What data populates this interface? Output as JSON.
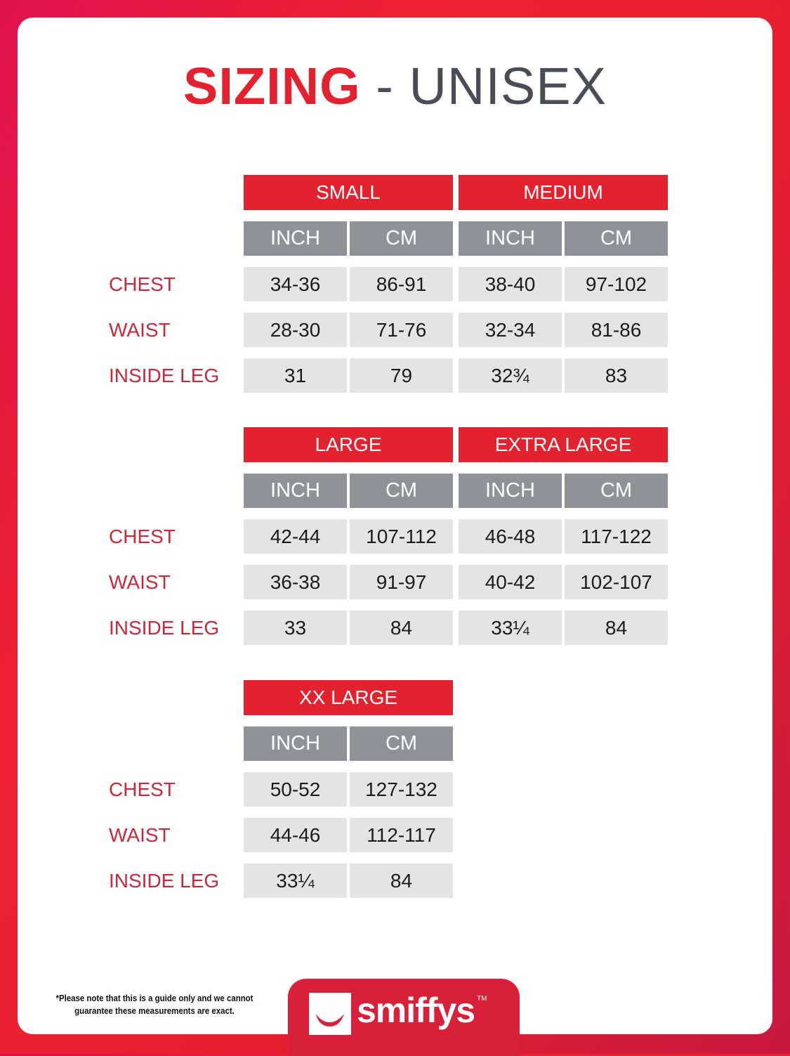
{
  "title": {
    "highlight": "SIZING",
    "rest": " - UNISEX"
  },
  "row_labels": [
    "CHEST",
    "WAIST",
    "INSIDE LEG"
  ],
  "unit_labels": {
    "inch": "INCH",
    "cm": "CM"
  },
  "blocks": [
    [
      {
        "name": "SMALL",
        "rows": [
          [
            "34-36",
            "86-91"
          ],
          [
            "28-30",
            "71-76"
          ],
          [
            "31",
            "79"
          ]
        ]
      },
      {
        "name": "MEDIUM",
        "rows": [
          [
            "38-40",
            "97-102"
          ],
          [
            "32-34",
            "81-86"
          ],
          [
            "32¾",
            "83"
          ]
        ]
      }
    ],
    [
      {
        "name": "LARGE",
        "rows": [
          [
            "42-44",
            "107-112"
          ],
          [
            "36-38",
            "91-97"
          ],
          [
            "33",
            "84"
          ]
        ]
      },
      {
        "name": "EXTRA LARGE",
        "rows": [
          [
            "46-48",
            "117-122"
          ],
          [
            "40-42",
            "102-107"
          ],
          [
            "33¼",
            "84"
          ]
        ]
      }
    ],
    [
      {
        "name": "XX LARGE",
        "rows": [
          [
            "50-52",
            "127-132"
          ],
          [
            "44-46",
            "112-117"
          ],
          [
            "33¼",
            "84"
          ]
        ]
      }
    ]
  ],
  "footer": {
    "note": "*Please note that this is a guide only and we cannot guarantee these measurements are exact.",
    "brand": "smiffys",
    "tm": "TM"
  },
  "colors": {
    "accent": "#e3222f",
    "header_grey": "#8f9296",
    "cell_grey": "#e4e4e4",
    "label": "#c8283a"
  }
}
